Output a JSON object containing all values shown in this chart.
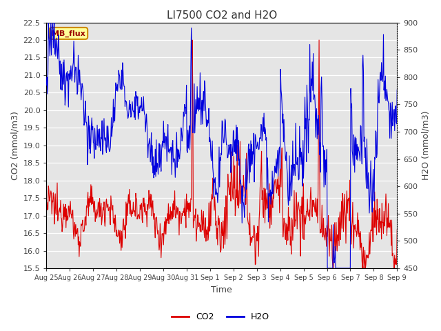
{
  "title": "LI7500 CO2 and H2O",
  "xlabel": "Time",
  "ylabel_left": "CO2 (mmol/m3)",
  "ylabel_right": "H2O (mmol/m3)",
  "co2_ylim": [
    15.5,
    22.5
  ],
  "h2o_ylim": [
    450,
    900
  ],
  "co2_yticks": [
    15.5,
    16.0,
    16.5,
    17.0,
    17.5,
    18.0,
    18.5,
    19.0,
    19.5,
    20.0,
    20.5,
    21.0,
    21.5,
    22.0,
    22.5
  ],
  "h2o_yticks": [
    450,
    500,
    550,
    600,
    650,
    700,
    750,
    800,
    850,
    900
  ],
  "xtick_labels": [
    "Aug 25",
    "Aug 26",
    "Aug 27",
    "Aug 28",
    "Aug 29",
    "Aug 30",
    "Aug 31",
    "Sep 1",
    "Sep 2",
    "Sep 3",
    "Sep 4",
    "Sep 5",
    "Sep 6",
    "Sep 7",
    "Sep 8",
    "Sep 9"
  ],
  "background_color": "#ffffff",
  "plot_bg_color": "#e5e5e5",
  "grid_color": "#ffffff",
  "co2_color": "#dd0000",
  "h2o_color": "#0000dd",
  "annotation_text": "MB_flux",
  "annotation_bg": "#ffff99",
  "annotation_border": "#cc8800",
  "annotation_text_color": "#990000",
  "title_fontsize": 11,
  "axis_fontsize": 9,
  "tick_fontsize": 8,
  "legend_fontsize": 9
}
